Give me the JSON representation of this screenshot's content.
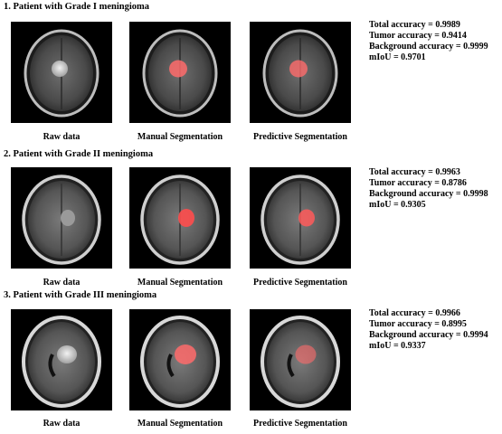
{
  "cases": [
    {
      "title": "1. Patient with Grade I meningioma",
      "captions": [
        "Raw data",
        "Manual Segmentation",
        "Predictive Segmentation"
      ],
      "metrics": [
        "Total accuracy = 0.9989",
        "Tumor accuracy = 0.9414",
        "Background accuracy = 0.9999",
        "mIoU = 0.9701"
      ]
    },
    {
      "title": "2. Patient with Grade II meningioma",
      "captions": [
        "Raw data",
        "Manual Segmentation",
        "Predictive Segmentation"
      ],
      "metrics": [
        "Total accuracy = 0.9963",
        "Tumor accuracy = 0.8786",
        "Background accuracy = 0.9998",
        "mIoU = 0.9305"
      ]
    },
    {
      "title": "3. Patient with Grade III meningioma",
      "captions": [
        "Raw data",
        "Manual Segmentation",
        "Predictive Segmentation"
      ],
      "metrics": [
        "Total accuracy = 0.9966",
        "Tumor accuracy = 0.8995",
        "Background accuracy = 0.9994",
        "mIoU = 0.9337"
      ]
    }
  ],
  "colors": {
    "tumor_overlay": "#ff5a5a",
    "background": "#000000"
  }
}
